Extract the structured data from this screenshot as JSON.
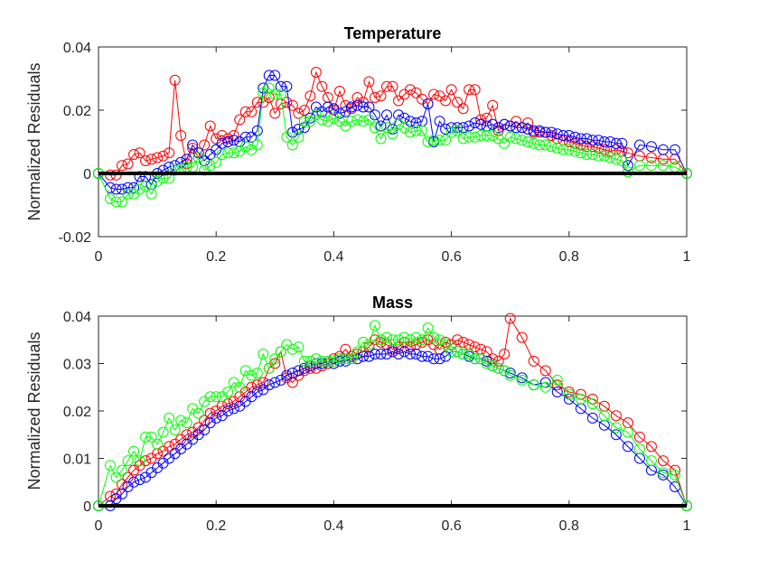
{
  "chart_data": [
    {
      "type": "line",
      "title": "Temperature",
      "xlabel": "",
      "ylabel": "Normalized Residuals",
      "xlim": [
        0,
        1
      ],
      "ylim": [
        -0.02,
        0.04
      ],
      "x_ticks": [
        0,
        0.2,
        0.4,
        0.6,
        0.8,
        1
      ],
      "x_tick_labels": [
        "0",
        "0.2",
        "0.4",
        "0.6",
        "0.8",
        "1"
      ],
      "y_ticks": [
        -0.02,
        0,
        0.02,
        0.04
      ],
      "y_tick_labels": [
        "-0.02",
        "0",
        "0.02",
        "0.04"
      ],
      "grid": false,
      "legend": "none",
      "reference_line": {
        "y": 0,
        "color": "#000000"
      },
      "x": [
        0,
        0.02,
        0.03,
        0.04,
        0.05,
        0.06,
        0.07,
        0.08,
        0.09,
        0.1,
        0.11,
        0.12,
        0.13,
        0.14,
        0.15,
        0.16,
        0.17,
        0.18,
        0.19,
        0.2,
        0.21,
        0.22,
        0.23,
        0.24,
        0.25,
        0.26,
        0.27,
        0.28,
        0.29,
        0.3,
        0.31,
        0.32,
        0.33,
        0.34,
        0.35,
        0.36,
        0.37,
        0.38,
        0.39,
        0.4,
        0.41,
        0.42,
        0.43,
        0.44,
        0.45,
        0.46,
        0.47,
        0.48,
        0.49,
        0.5,
        0.51,
        0.52,
        0.53,
        0.54,
        0.55,
        0.56,
        0.57,
        0.58,
        0.59,
        0.6,
        0.61,
        0.62,
        0.63,
        0.64,
        0.65,
        0.66,
        0.67,
        0.68,
        0.69,
        0.7,
        0.71,
        0.72,
        0.73,
        0.74,
        0.75,
        0.76,
        0.77,
        0.78,
        0.79,
        0.8,
        0.81,
        0.82,
        0.83,
        0.84,
        0.85,
        0.86,
        0.87,
        0.88,
        0.89,
        0.9,
        0.92,
        0.94,
        0.96,
        0.98,
        1
      ],
      "series": [
        {
          "color": "#ff0000",
          "values": [
            0,
            -0.0005,
            -0.0005,
            0.0025,
            0.003,
            0.006,
            0.0065,
            0.004,
            0.0045,
            0.005,
            0.0055,
            0.0065,
            0.0295,
            0.012,
            0.003,
            0.008,
            0.005,
            0.009,
            0.015,
            0.011,
            0.012,
            0.011,
            0.012,
            0.017,
            0.0195,
            0.0195,
            0.0225,
            0.0225,
            0.024,
            0.019,
            0.022,
            0.0225,
            0.0215,
            0.019,
            0.02,
            0.0245,
            0.032,
            0.0275,
            0.024,
            0.02,
            0.026,
            0.0215,
            0.0205,
            0.024,
            0.0225,
            0.029,
            0.024,
            0.0245,
            0.0275,
            0.0275,
            0.023,
            0.025,
            0.0265,
            0.0255,
            0.0235,
            0.022,
            0.025,
            0.0245,
            0.023,
            0.0265,
            0.0225,
            0.0205,
            0.0265,
            0.0265,
            0.017,
            0.0175,
            0.0215,
            0.0135,
            0.0155,
            0.015,
            0.0165,
            0.0145,
            0.016,
            0.013,
            0.013,
            0.013,
            0.012,
            0.011,
            0.0105,
            0.01,
            0.0095,
            0.009,
            0.0085,
            0.0085,
            0.008,
            0.0075,
            0.007,
            0.0075,
            0.007,
            0.0065,
            0.0055,
            0.005,
            0.0045,
            0.0045,
            0
          ]
        },
        {
          "color": "#0000ff",
          "values": [
            0,
            -0.0045,
            -0.005,
            -0.005,
            -0.0045,
            -0.0045,
            -0.001,
            -0.001,
            -0.0035,
            0,
            0.001,
            0.002,
            0.0025,
            0.0035,
            0.0045,
            0.009,
            0.0065,
            0.004,
            0.006,
            0.0075,
            0.0095,
            0.01,
            0.0105,
            0.01,
            0.0115,
            0.0115,
            0.0135,
            0.027,
            0.031,
            0.031,
            0.0275,
            0.0275,
            0.013,
            0.014,
            0.0145,
            0.0175,
            0.021,
            0.0195,
            0.021,
            0.0205,
            0.019,
            0.0195,
            0.021,
            0.0215,
            0.021,
            0.021,
            0.0185,
            0.015,
            0.0185,
            0.014,
            0.0185,
            0.0175,
            0.0165,
            0.016,
            0.0165,
            0.022,
            0.01,
            0.0165,
            0.014,
            0.0145,
            0.0145,
            0.0145,
            0.015,
            0.016,
            0.0155,
            0.015,
            0.0155,
            0.0145,
            0.0155,
            0.015,
            0.0145,
            0.0145,
            0.014,
            0.0135,
            0.0135,
            0.013,
            0.013,
            0.0125,
            0.012,
            0.012,
            0.0115,
            0.011,
            0.011,
            0.0105,
            0.0105,
            0.01,
            0.01,
            0.0095,
            0.0095,
            0.0025,
            0.009,
            0.0085,
            0.0075,
            0.0075,
            0
          ]
        },
        {
          "color": "#00ff00",
          "values": [
            0,
            -0.008,
            -0.009,
            -0.009,
            -0.0065,
            -0.0065,
            -0.005,
            -0.004,
            -0.0065,
            -0.0025,
            -0.0015,
            -0.0015,
            0.001,
            0.0015,
            0.002,
            0.002,
            0.005,
            0.001,
            0.0025,
            0.0035,
            0.006,
            0.0065,
            0.0065,
            0.007,
            0.0085,
            0.0075,
            0.009,
            0.0255,
            0.027,
            0.025,
            0.025,
            0.0115,
            0.009,
            0.0115,
            0.0165,
            0.0165,
            0.0185,
            0.017,
            0.0165,
            0.0175,
            0.0165,
            0.015,
            0.0165,
            0.017,
            0.0165,
            0.017,
            0.0145,
            0.011,
            0.0145,
            0.0125,
            0.0155,
            0.0145,
            0.013,
            0.0135,
            0.0135,
            0.01,
            0.0105,
            0.0105,
            0.0105,
            0.013,
            0.0135,
            0.011,
            0.0115,
            0.0115,
            0.012,
            0.012,
            0.012,
            0.011,
            0.0095,
            0.0115,
            0.011,
            0.0105,
            0.01,
            0.0095,
            0.009,
            0.009,
            0.0085,
            0.008,
            0.0075,
            0.0075,
            0.007,
            0.0065,
            0.006,
            0.006,
            0.0055,
            0.0055,
            0.005,
            0.0045,
            0.004,
            0.0005,
            0.0025,
            0.0025,
            0.0025,
            0.002,
            0
          ]
        }
      ]
    },
    {
      "type": "line",
      "title": "Mass",
      "xlabel": "",
      "ylabel": "Normalized Residuals",
      "xlim": [
        0,
        1
      ],
      "ylim": [
        0,
        0.04
      ],
      "x_ticks": [
        0,
        0.2,
        0.4,
        0.6,
        0.8,
        1
      ],
      "x_tick_labels": [
        "0",
        "0.2",
        "0.4",
        "0.6",
        "0.8",
        "1"
      ],
      "y_ticks": [
        0,
        0.01,
        0.02,
        0.03,
        0.04
      ],
      "y_tick_labels": [
        "0",
        "0.01",
        "0.02",
        "0.03",
        "0.04"
      ],
      "grid": false,
      "legend": "none",
      "reference_line": {
        "y": 0,
        "color": "#000000"
      },
      "x": [
        0,
        0.02,
        0.03,
        0.04,
        0.05,
        0.06,
        0.07,
        0.08,
        0.09,
        0.1,
        0.11,
        0.12,
        0.13,
        0.14,
        0.15,
        0.16,
        0.17,
        0.18,
        0.19,
        0.2,
        0.21,
        0.22,
        0.23,
        0.24,
        0.25,
        0.26,
        0.27,
        0.28,
        0.29,
        0.3,
        0.31,
        0.32,
        0.33,
        0.34,
        0.35,
        0.36,
        0.37,
        0.38,
        0.39,
        0.4,
        0.41,
        0.42,
        0.43,
        0.44,
        0.45,
        0.46,
        0.47,
        0.48,
        0.49,
        0.5,
        0.51,
        0.52,
        0.53,
        0.54,
        0.55,
        0.56,
        0.57,
        0.58,
        0.59,
        0.6,
        0.61,
        0.62,
        0.63,
        0.64,
        0.65,
        0.66,
        0.67,
        0.68,
        0.69,
        0.7,
        0.72,
        0.74,
        0.76,
        0.78,
        0.8,
        0.82,
        0.84,
        0.86,
        0.88,
        0.9,
        0.92,
        0.94,
        0.96,
        0.98,
        1
      ],
      "series": [
        {
          "color": "#ff0000",
          "values": [
            0,
            0.002,
            0.0025,
            0.0045,
            0.006,
            0.0075,
            0.0085,
            0.0095,
            0.01,
            0.011,
            0.0115,
            0.0125,
            0.013,
            0.014,
            0.015,
            0.0155,
            0.0165,
            0.018,
            0.0195,
            0.02,
            0.021,
            0.0215,
            0.022,
            0.023,
            0.024,
            0.025,
            0.0255,
            0.026,
            0.029,
            0.03,
            0.0325,
            0.027,
            0.026,
            0.0275,
            0.0285,
            0.029,
            0.029,
            0.0295,
            0.03,
            0.031,
            0.0315,
            0.033,
            0.0315,
            0.032,
            0.0325,
            0.0335,
            0.035,
            0.0345,
            0.034,
            0.033,
            0.0335,
            0.0345,
            0.0335,
            0.034,
            0.0345,
            0.035,
            0.034,
            0.033,
            0.0345,
            0.034,
            0.035,
            0.0345,
            0.034,
            0.0335,
            0.033,
            0.0325,
            0.031,
            0.0305,
            0.032,
            0.0395,
            0.0355,
            0.0305,
            0.0285,
            0.0255,
            0.024,
            0.0235,
            0.0225,
            0.021,
            0.019,
            0.0175,
            0.0145,
            0.0125,
            0.0095,
            0.0075,
            0
          ]
        },
        {
          "color": "#0000ff",
          "values": [
            0,
            0,
            0.0015,
            0.0025,
            0.004,
            0.005,
            0.0055,
            0.006,
            0.007,
            0.008,
            0.009,
            0.01,
            0.011,
            0.012,
            0.013,
            0.014,
            0.015,
            0.016,
            0.0175,
            0.0185,
            0.019,
            0.02,
            0.0205,
            0.021,
            0.022,
            0.023,
            0.024,
            0.0245,
            0.0255,
            0.026,
            0.0265,
            0.0275,
            0.028,
            0.0285,
            0.029,
            0.0295,
            0.03,
            0.03,
            0.0305,
            0.03,
            0.0305,
            0.0305,
            0.031,
            0.031,
            0.0315,
            0.0315,
            0.032,
            0.032,
            0.032,
            0.0325,
            0.032,
            0.0325,
            0.032,
            0.032,
            0.0315,
            0.0315,
            0.031,
            0.031,
            0.0315,
            0.0325,
            0.0325,
            0.032,
            0.0315,
            0.031,
            0.031,
            0.0305,
            0.0295,
            0.029,
            0.0285,
            0.028,
            0.027,
            0.0255,
            0.026,
            0.024,
            0.0225,
            0.0205,
            0.0185,
            0.017,
            0.015,
            0.0125,
            0.01,
            0.0075,
            0.0065,
            0.004,
            0
          ]
        },
        {
          "color": "#00ff00",
          "values": [
            0,
            0.0085,
            0.006,
            0.0075,
            0.0095,
            0.0115,
            0.0095,
            0.0145,
            0.0145,
            0.013,
            0.0155,
            0.0185,
            0.016,
            0.018,
            0.0175,
            0.0205,
            0.0195,
            0.022,
            0.023,
            0.023,
            0.023,
            0.024,
            0.026,
            0.025,
            0.0285,
            0.0275,
            0.028,
            0.032,
            0.029,
            0.031,
            0.0325,
            0.034,
            0.033,
            0.0335,
            0.0305,
            0.0305,
            0.031,
            0.0305,
            0.0305,
            0.0305,
            0.031,
            0.031,
            0.031,
            0.0325,
            0.0345,
            0.034,
            0.038,
            0.035,
            0.0355,
            0.035,
            0.035,
            0.0355,
            0.035,
            0.0355,
            0.035,
            0.0375,
            0.0355,
            0.035,
            0.034,
            0.0325,
            0.0325,
            0.032,
            0.032,
            0.031,
            0.031,
            0.03,
            0.0295,
            0.029,
            0.0285,
            0.0275,
            0.0265,
            0.0255,
            0.025,
            0.0265,
            0.0235,
            0.0225,
            0.0215,
            0.019,
            0.0165,
            0.0155,
            0.012,
            0.0095,
            0.007,
            0.0065,
            0
          ]
        }
      ]
    }
  ]
}
